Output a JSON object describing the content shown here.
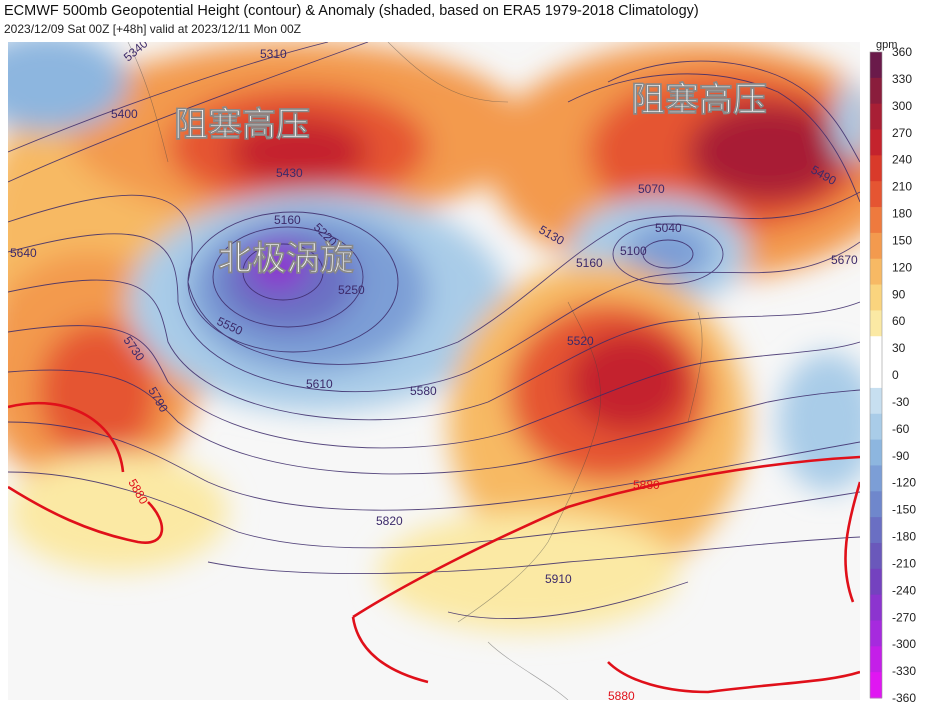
{
  "header": {
    "title": "ECMWF 500mb Geopotential Height (contour) & Anomaly (shaded, based on ERA5 1979-2018 Climatology)",
    "subtitle": "2023/12/09 Sat 00Z [+48h] valid at 2023/12/11 Mon 00Z"
  },
  "map": {
    "annotations": [
      "阻塞高压",
      "阻塞高压",
      "北极涡旋"
    ],
    "contour_labels": [
      "5310",
      "5340",
      "5400",
      "5430",
      "5160",
      "5220",
      "5250",
      "5070",
      "5040",
      "5100",
      "5130",
      "5160",
      "5490",
      "5670",
      "5640",
      "5550",
      "5520",
      "5610",
      "5580",
      "5730",
      "5790",
      "5880",
      "5880",
      "5820",
      "5910",
      "5880"
    ]
  },
  "colorbar": {
    "unit": "gpm",
    "ticks": [
      "360",
      "330",
      "300",
      "270",
      "240",
      "210",
      "180",
      "150",
      "120",
      "90",
      "60",
      "30",
      "0",
      "-30",
      "-60",
      "-90",
      "-120",
      "-150",
      "-180",
      "-210",
      "-240",
      "-270",
      "-300",
      "-330",
      "-360"
    ],
    "colors": [
      "#6a1a4a",
      "#8a1d3c",
      "#a81f35",
      "#c4232d",
      "#d93a2a",
      "#e55532",
      "#ee7a3e",
      "#f39a4e",
      "#f7b964",
      "#fad47e",
      "#fbe9a4",
      "#ffffff",
      "#ffffff",
      "#c7dff0",
      "#a9cce8",
      "#8db6df",
      "#7c9ed6",
      "#6f87cc",
      "#6a6fc3",
      "#6a58bb",
      "#7442bf",
      "#8c34cf",
      "#a62ade",
      "#c41fe8",
      "#e016f2"
    ]
  }
}
